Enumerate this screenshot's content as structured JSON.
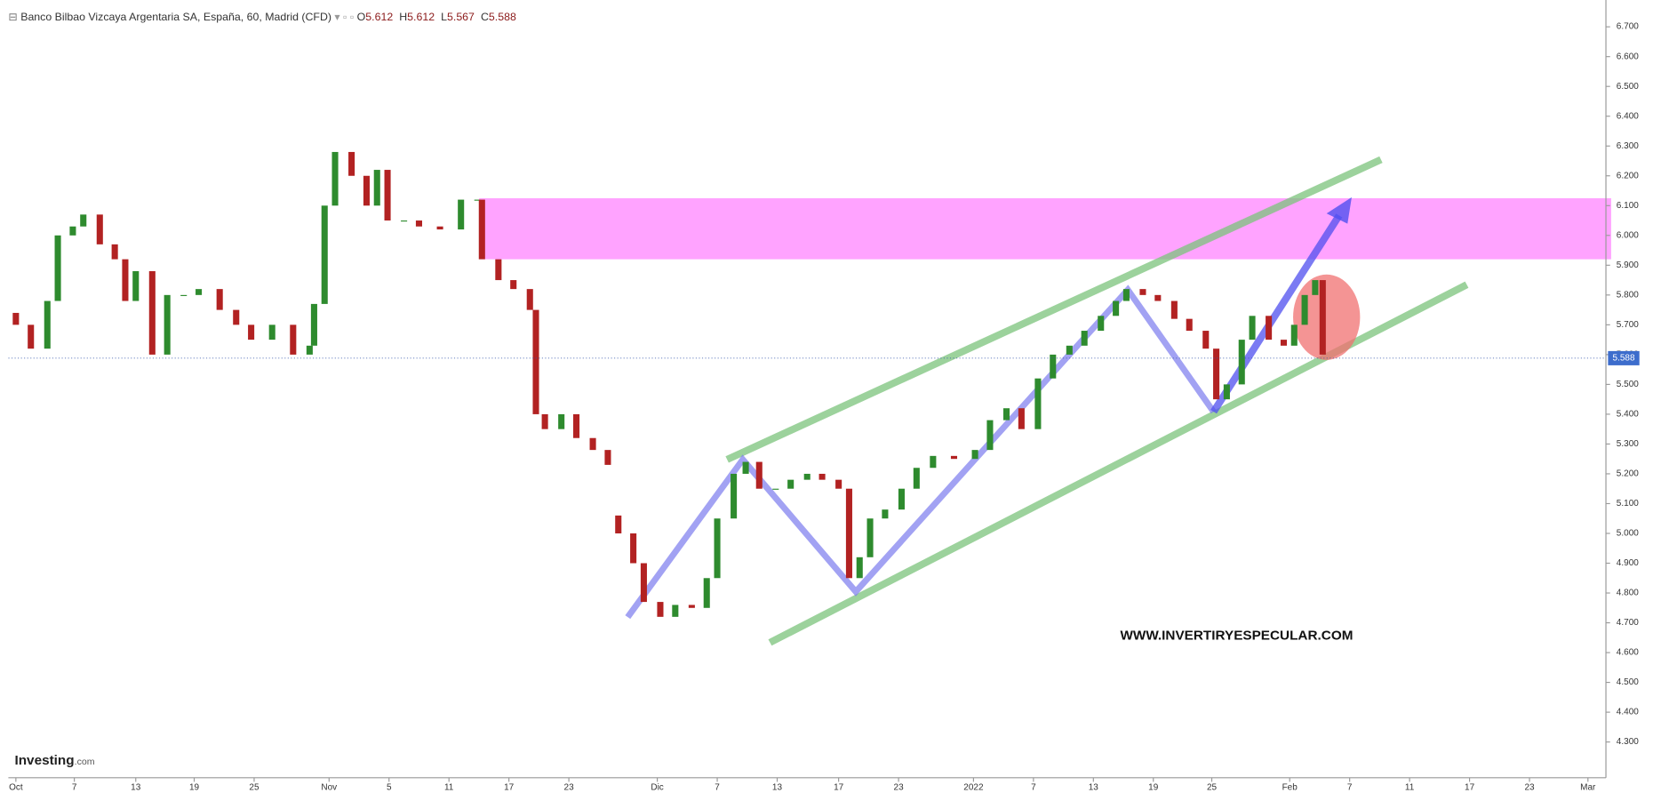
{
  "chart_data": {
    "type": "candlestick",
    "title": "Banco Bilbao Vizcaya Argentaria SA, España, 60, Madrid (CFD)",
    "ohlc_labels": [
      "O",
      "H",
      "L",
      "C"
    ],
    "ohlc": [
      5.612,
      5.612,
      5.567,
      5.588
    ],
    "x": [
      0.5,
      1.5,
      2.6,
      3.3,
      4.3,
      5.0,
      6.1,
      7.1,
      7.8,
      8.5,
      9.6,
      10.6,
      11.7,
      12.7,
      14.1,
      15.2,
      16.2,
      17.6,
      19.0,
      20.1,
      20.4,
      21.1,
      21.8,
      22.9,
      23.9,
      24.6,
      25.3,
      26.4,
      27.4,
      28.8,
      30.2,
      31.3,
      31.6,
      32.7,
      33.7,
      34.8,
      35.2,
      35.8,
      36.9,
      37.9,
      39.0,
      40.0,
      40.7,
      41.7,
      42.4,
      43.5,
      44.5,
      45.6,
      46.6,
      47.3,
      48.4,
      49.2,
      50.1,
      51.2,
      52.2,
      53.3,
      54.3,
      55.4,
      56.1,
      56.8,
      57.5,
      58.5,
      59.6,
      60.6,
      61.7,
      63.1,
      64.5,
      65.5,
      66.6,
      67.6,
      68.7,
      69.7,
      70.8,
      71.8,
      72.9,
      73.9,
      74.6,
      75.7,
      76.7,
      77.8,
      78.8,
      79.9,
      80.6,
      81.3,
      82.3,
      83.0,
      84.1,
      85.1,
      85.8,
      86.5,
      87.2,
      87.7
    ],
    "open": [
      5.74,
      5.7,
      5.62,
      5.78,
      6.0,
      6.03,
      6.07,
      5.97,
      5.92,
      5.78,
      5.88,
      5.6,
      5.8,
      5.8,
      5.82,
      5.75,
      5.7,
      5.65,
      5.7,
      5.6,
      5.63,
      5.77,
      6.1,
      6.28,
      6.2,
      6.1,
      6.22,
      6.05,
      6.05,
      6.03,
      6.02,
      6.12,
      6.12,
      5.92,
      5.85,
      5.82,
      5.75,
      5.4,
      5.35,
      5.4,
      5.32,
      5.28,
      5.06,
      5.0,
      4.9,
      4.77,
      4.72,
      4.76,
      4.75,
      4.85,
      5.05,
      5.2,
      5.24,
      5.15,
      5.15,
      5.18,
      5.2,
      5.18,
      5.15,
      4.85,
      4.92,
      5.05,
      5.08,
      5.15,
      5.22,
      5.26,
      5.25,
      5.28,
      5.38,
      5.42,
      5.35,
      5.52,
      5.6,
      5.63,
      5.68,
      5.73,
      5.78,
      5.82,
      5.8,
      5.78,
      5.72,
      5.68,
      5.62,
      5.45,
      5.5,
      5.65,
      5.73,
      5.65,
      5.63,
      5.7,
      5.8,
      5.85
    ],
    "close": [
      5.7,
      5.62,
      5.78,
      6.0,
      6.03,
      6.07,
      5.97,
      5.92,
      5.78,
      5.88,
      5.6,
      5.8,
      5.8,
      5.82,
      5.75,
      5.7,
      5.65,
      5.7,
      5.6,
      5.63,
      5.77,
      6.1,
      6.28,
      6.2,
      6.1,
      6.22,
      6.05,
      6.05,
      6.03,
      6.02,
      6.12,
      6.12,
      5.92,
      5.85,
      5.82,
      5.75,
      5.4,
      5.35,
      5.4,
      5.32,
      5.28,
      5.23,
      5.0,
      4.9,
      4.77,
      4.72,
      4.76,
      4.75,
      4.85,
      5.05,
      5.2,
      5.24,
      5.15,
      5.15,
      5.18,
      5.2,
      5.18,
      5.15,
      4.85,
      4.92,
      5.05,
      5.08,
      5.15,
      5.22,
      5.26,
      5.25,
      5.28,
      5.38,
      5.42,
      5.35,
      5.52,
      5.6,
      5.63,
      5.68,
      5.73,
      5.78,
      5.82,
      5.8,
      5.78,
      5.72,
      5.68,
      5.62,
      5.45,
      5.5,
      5.65,
      5.73,
      5.65,
      5.63,
      5.7,
      5.8,
      5.85,
      5.6
    ],
    "up_color": "#2e8b2e",
    "down_color": "#b22222",
    "xlim": [
      0,
      106.6
    ],
    "xticks": [
      {
        "value": 0.5,
        "label": "Oct"
      },
      {
        "value": 4.4,
        "label": "7"
      },
      {
        "value": 8.5,
        "label": "13"
      },
      {
        "value": 12.4,
        "label": "19"
      },
      {
        "value": 16.4,
        "label": "25"
      },
      {
        "value": 21.4,
        "label": "Nov"
      },
      {
        "value": 25.4,
        "label": "5"
      },
      {
        "value": 29.4,
        "label": "11"
      },
      {
        "value": 33.4,
        "label": "17"
      },
      {
        "value": 37.4,
        "label": "23"
      },
      {
        "value": 43.3,
        "label": "Dic"
      },
      {
        "value": 47.3,
        "label": "7"
      },
      {
        "value": 51.3,
        "label": "13"
      },
      {
        "value": 55.4,
        "label": "17"
      },
      {
        "value": 59.4,
        "label": "23"
      },
      {
        "value": 64.4,
        "label": "2022"
      },
      {
        "value": 68.4,
        "label": "7"
      },
      {
        "value": 72.4,
        "label": "13"
      },
      {
        "value": 76.4,
        "label": "19"
      },
      {
        "value": 80.3,
        "label": "25"
      },
      {
        "value": 85.5,
        "label": "Feb"
      },
      {
        "value": 89.5,
        "label": "7"
      },
      {
        "value": 93.5,
        "label": "11"
      },
      {
        "value": 97.5,
        "label": "17"
      },
      {
        "value": 101.5,
        "label": "23"
      },
      {
        "value": 105.4,
        "label": "Mar"
      }
    ],
    "ylim": [
      4.18,
      6.79
    ],
    "yticks": [
      {
        "value": 4.3,
        "label": "4.300"
      },
      {
        "value": 4.4,
        "label": "4.400"
      },
      {
        "value": 4.5,
        "label": "4.500"
      },
      {
        "value": 4.6,
        "label": "4.600"
      },
      {
        "value": 4.7,
        "label": "4.700"
      },
      {
        "value": 4.8,
        "label": "4.800"
      },
      {
        "value": 4.9,
        "label": "4.900"
      },
      {
        "value": 5.0,
        "label": "5.000"
      },
      {
        "value": 5.1,
        "label": "5.100"
      },
      {
        "value": 5.2,
        "label": "5.200"
      },
      {
        "value": 5.3,
        "label": "5.300"
      },
      {
        "value": 5.4,
        "label": "5.400"
      },
      {
        "value": 5.5,
        "label": "5.500"
      },
      {
        "value": 5.6,
        "label": "5.600"
      },
      {
        "value": 5.7,
        "label": "5.700"
      },
      {
        "value": 5.8,
        "label": "5.800"
      },
      {
        "value": 5.9,
        "label": "5.900"
      },
      {
        "value": 6.0,
        "label": "6.000"
      },
      {
        "value": 6.1,
        "label": "6.100"
      },
      {
        "value": 6.2,
        "label": "6.200"
      },
      {
        "value": 6.3,
        "label": "6.300"
      },
      {
        "value": 6.4,
        "label": "6.400"
      },
      {
        "value": 6.5,
        "label": "6.500"
      },
      {
        "value": 6.6,
        "label": "6.600"
      },
      {
        "value": 6.7,
        "label": "6.700"
      }
    ],
    "last_price": 5.588,
    "watermark": "WWW.INVERTIRYESPECULAR.COM",
    "brand": [
      "Investing",
      ".com"
    ]
  }
}
